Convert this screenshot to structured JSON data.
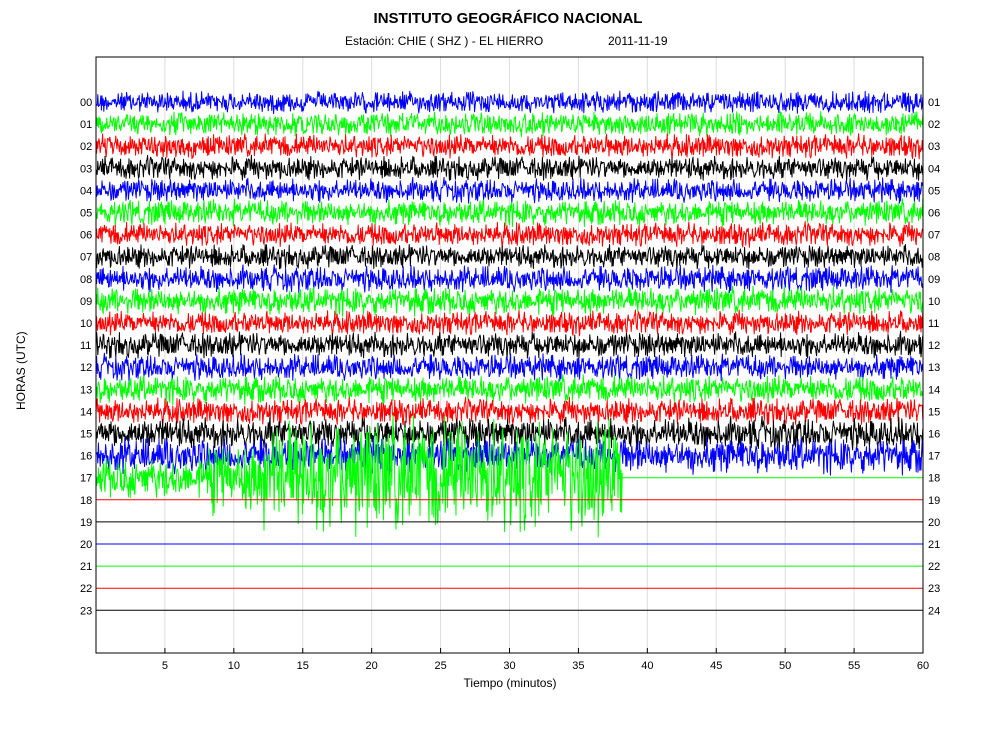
{
  "chart_data": {
    "type": "line",
    "title": "INSTITUTO GEOGRÁFICO NACIONAL",
    "subtitle_station": "Estación:  CHIE ( SHZ ) - EL HIERRO",
    "subtitle_date": "2011-11-19",
    "xlabel": "Tiempo (minutos)",
    "ylabel": "HORAS (UTC)",
    "xlim": [
      0,
      60
    ],
    "x_ticks": [
      "5",
      "10",
      "15",
      "20",
      "25",
      "30",
      "35",
      "40",
      "45",
      "50",
      "55",
      "60"
    ],
    "left_labels": [
      "00",
      "01",
      "02",
      "03",
      "04",
      "05",
      "06",
      "07",
      "08",
      "09",
      "10",
      "11",
      "12",
      "13",
      "14",
      "15",
      "16",
      "17",
      "18",
      "19",
      "20",
      "21",
      "22",
      "23"
    ],
    "right_labels": [
      "01",
      "02",
      "03",
      "04",
      "05",
      "06",
      "07",
      "08",
      "09",
      "10",
      "11",
      "12",
      "13",
      "14",
      "15",
      "16",
      "17",
      "18",
      "19",
      "20",
      "21",
      "22",
      "23",
      "24"
    ],
    "trace_colors": [
      "#0000ff",
      "#00ff00",
      "#ff0000",
      "#000000"
    ],
    "grid": "vertical",
    "traces": [
      {
        "hour": "00",
        "color": "#0000ff",
        "amplitude": 0.55,
        "end_minute": 60
      },
      {
        "hour": "01",
        "color": "#00ff00",
        "amplitude": 0.6,
        "end_minute": 60
      },
      {
        "hour": "02",
        "color": "#ff0000",
        "amplitude": 0.6,
        "end_minute": 60
      },
      {
        "hour": "03",
        "color": "#000000",
        "amplitude": 0.6,
        "end_minute": 60
      },
      {
        "hour": "04",
        "color": "#0000ff",
        "amplitude": 0.6,
        "end_minute": 60
      },
      {
        "hour": "05",
        "color": "#00ff00",
        "amplitude": 0.65,
        "end_minute": 60
      },
      {
        "hour": "06",
        "color": "#ff0000",
        "amplitude": 0.6,
        "end_minute": 60
      },
      {
        "hour": "07",
        "color": "#000000",
        "amplitude": 0.6,
        "end_minute": 60
      },
      {
        "hour": "08",
        "color": "#0000ff",
        "amplitude": 0.65,
        "end_minute": 60
      },
      {
        "hour": "09",
        "color": "#00ff00",
        "amplitude": 0.7,
        "end_minute": 60
      },
      {
        "hour": "10",
        "color": "#ff0000",
        "amplitude": 0.6,
        "end_minute": 60
      },
      {
        "hour": "11",
        "color": "#000000",
        "amplitude": 0.65,
        "end_minute": 60
      },
      {
        "hour": "12",
        "color": "#0000ff",
        "amplitude": 0.65,
        "end_minute": 60
      },
      {
        "hour": "13",
        "color": "#00ff00",
        "amplitude": 0.7,
        "end_minute": 60
      },
      {
        "hour": "14",
        "color": "#ff0000",
        "amplitude": 0.65,
        "end_minute": 60
      },
      {
        "hour": "15",
        "color": "#000000",
        "amplitude": 0.8,
        "end_minute": 60
      },
      {
        "hour": "16",
        "color": "#0000ff",
        "amplitude": 0.9,
        "end_minute": 60
      },
      {
        "hour": "17",
        "color": "#00ff00",
        "amplitude": 3.0,
        "end_minute": 38.2
      },
      {
        "hour": "18",
        "color": "#ff0000",
        "amplitude": 0,
        "end_minute": 60
      },
      {
        "hour": "19",
        "color": "#000000",
        "amplitude": 0,
        "end_minute": 60
      },
      {
        "hour": "20",
        "color": "#0000ff",
        "amplitude": 0,
        "end_minute": 60
      },
      {
        "hour": "21",
        "color": "#00ff00",
        "amplitude": 0,
        "end_minute": 60
      },
      {
        "hour": "22",
        "color": "#ff0000",
        "amplitude": 0,
        "end_minute": 60
      },
      {
        "hour": "23",
        "color": "#000000",
        "amplitude": 0,
        "end_minute": 60
      }
    ]
  }
}
